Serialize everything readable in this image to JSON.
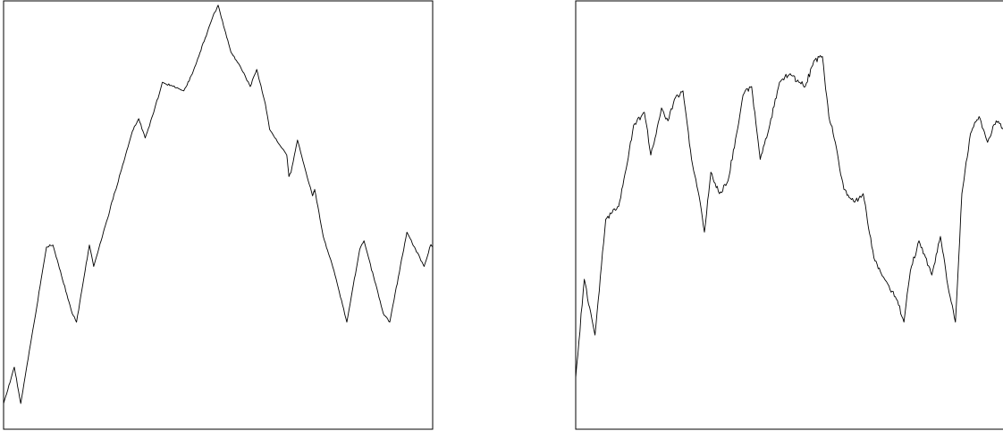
{
  "chart_data": [
    {
      "type": "line",
      "title": "",
      "xlabel": "",
      "ylabel": "",
      "xlim": [
        0,
        1
      ],
      "ylim": [
        0,
        1
      ],
      "grid": false,
      "axes_ticks": false,
      "color": "#000000",
      "series": [
        {
          "x": [
            0.0,
            0.025,
            0.04,
            0.1,
            0.115,
            0.16,
            0.17,
            0.185,
            0.2,
            0.21,
            0.3,
            0.315,
            0.33,
            0.35,
            0.37,
            0.42,
            0.44,
            0.49,
            0.5,
            0.53,
            0.55,
            0.575,
            0.59,
            0.61,
            0.62,
            0.66,
            0.665,
            0.67,
            0.685,
            0.72,
            0.725,
            0.745,
            0.77,
            0.8,
            0.83,
            0.84,
            0.885,
            0.9,
            0.94,
            0.98,
            0.995,
            1.0
          ],
          "y": [
            0.06,
            0.145,
            0.06,
            0.425,
            0.43,
            0.27,
            0.25,
            0.34,
            0.43,
            0.38,
            0.695,
            0.725,
            0.68,
            0.74,
            0.81,
            0.79,
            0.83,
            0.97,
            0.99,
            0.88,
            0.85,
            0.8,
            0.84,
            0.76,
            0.7,
            0.64,
            0.59,
            0.6,
            0.675,
            0.545,
            0.56,
            0.45,
            0.37,
            0.25,
            0.42,
            0.44,
            0.27,
            0.25,
            0.46,
            0.38,
            0.43,
            0.425
          ]
        }
      ]
    },
    {
      "type": "line",
      "title": "",
      "xlabel": "",
      "ylabel": "",
      "xlim": [
        0,
        1
      ],
      "ylim": [
        0,
        1
      ],
      "grid": false,
      "axes_ticks": false,
      "color": "#000000",
      "series": [
        {
          "x": [
            0.0,
            0.02,
            0.045,
            0.07,
            0.1,
            0.12,
            0.135,
            0.16,
            0.175,
            0.185,
            0.2,
            0.215,
            0.23,
            0.25,
            0.27,
            0.29,
            0.3,
            0.315,
            0.335,
            0.355,
            0.375,
            0.39,
            0.41,
            0.43,
            0.45,
            0.475,
            0.5,
            0.52,
            0.535,
            0.555,
            0.575,
            0.59,
            0.605,
            0.625,
            0.65,
            0.67,
            0.695,
            0.72,
            0.75,
            0.765,
            0.78,
            0.8,
            0.83,
            0.85,
            0.87,
            0.885,
            0.9,
            0.92,
            0.94,
            0.96,
            0.98,
            1.0
          ],
          "y": [
            0.12,
            0.35,
            0.22,
            0.49,
            0.52,
            0.62,
            0.71,
            0.74,
            0.64,
            0.68,
            0.75,
            0.72,
            0.77,
            0.79,
            0.63,
            0.53,
            0.46,
            0.6,
            0.55,
            0.58,
            0.69,
            0.78,
            0.8,
            0.63,
            0.7,
            0.81,
            0.83,
            0.81,
            0.8,
            0.86,
            0.87,
            0.73,
            0.67,
            0.56,
            0.53,
            0.55,
            0.4,
            0.35,
            0.3,
            0.25,
            0.37,
            0.44,
            0.36,
            0.45,
            0.32,
            0.25,
            0.55,
            0.69,
            0.73,
            0.67,
            0.72,
            0.7
          ]
        }
      ]
    }
  ]
}
